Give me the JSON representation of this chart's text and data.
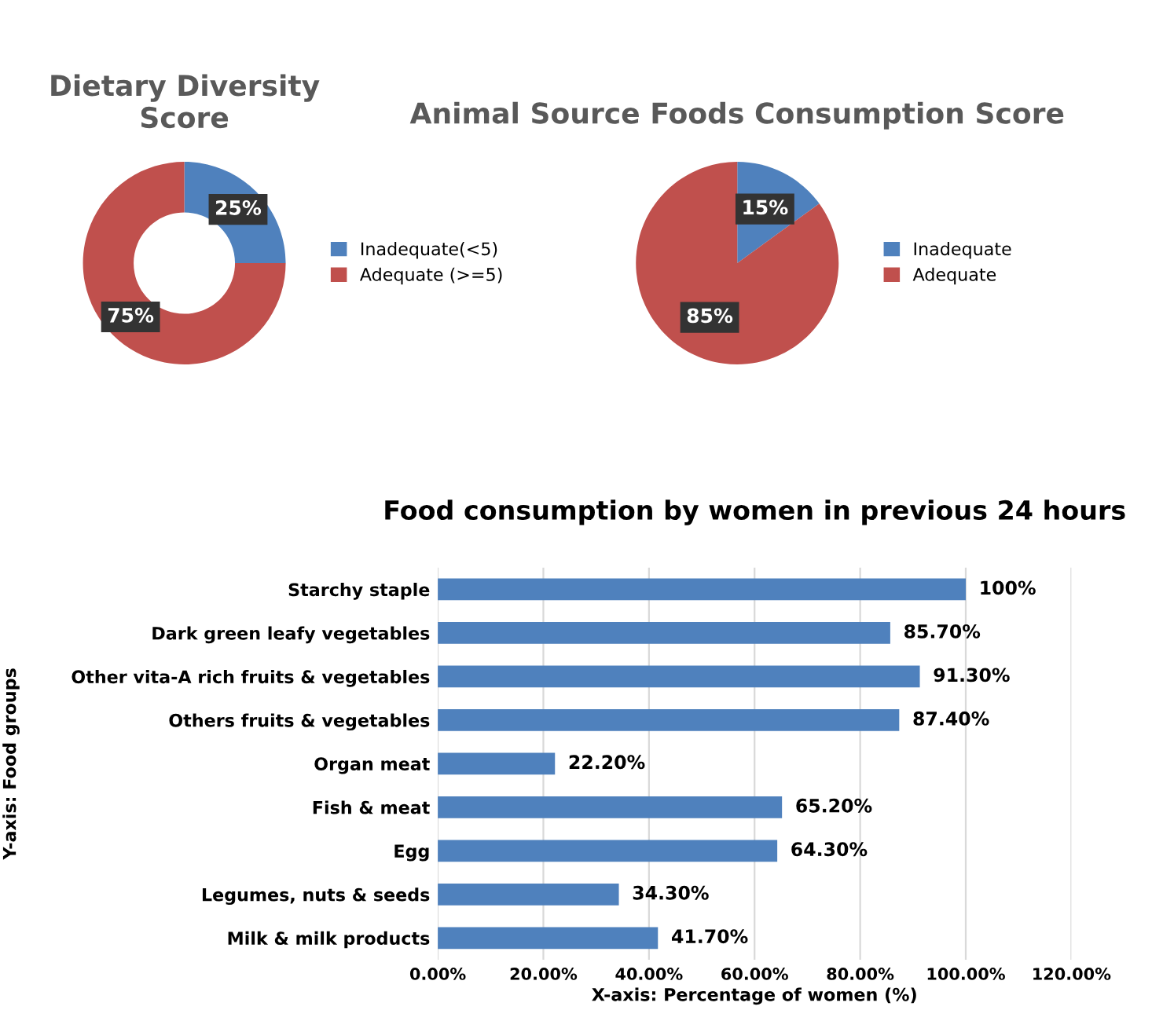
{
  "chart_data": [
    {
      "type": "donut",
      "title": "Dietary Diversity Score",
      "categories": [
        "Inadequate(<5)",
        "Adequate (>=5)"
      ],
      "values": [
        25,
        75
      ],
      "colors": [
        "#4f81bd",
        "#c0504d"
      ],
      "value_labels": [
        "25%",
        "75%"
      ],
      "legend": "right"
    },
    {
      "type": "pie",
      "title": "Animal Source Foods Consumption Score",
      "categories": [
        "Inadequate",
        "Adequate"
      ],
      "values": [
        15,
        85
      ],
      "colors": [
        "#4f81bd",
        "#c0504d"
      ],
      "value_labels": [
        "15%",
        "85%"
      ],
      "legend": "right"
    },
    {
      "type": "bar",
      "orientation": "horizontal",
      "title": "Food consumption by women in previous 24 hours",
      "xlabel": "X-axis: Percentage of women (%)",
      "ylabel": "Y-axis: Food groups",
      "categories": [
        "Starchy staple",
        "Dark green leafy vegetables",
        "Other vita-A rich fruits & vegetables",
        "Others fruits & vegetables",
        "Organ meat",
        "Fish & meat",
        "Egg",
        "Legumes, nuts & seeds",
        "Milk & milk products"
      ],
      "values": [
        100,
        85.7,
        91.3,
        87.4,
        22.2,
        65.2,
        64.3,
        34.3,
        41.7
      ],
      "color": "#4f81bd",
      "value_labels": [
        "100%",
        "85.70%",
        "91.30%",
        "87.40%",
        "22.20%",
        "65.20%",
        "64.30%",
        "34.30%",
        "41.70%"
      ],
      "xlim": [
        0,
        120
      ],
      "xticks": [
        {
          "value": 0,
          "label": "0.00%"
        },
        {
          "value": 20,
          "label": "20.00%"
        },
        {
          "value": 40,
          "label": "40.00%"
        },
        {
          "value": 60,
          "label": "60.00%"
        },
        {
          "value": 80,
          "label": "80.00%"
        },
        {
          "value": 100,
          "label": "100.00%"
        },
        {
          "value": 120,
          "label": "120.00%"
        }
      ],
      "grid": "x"
    }
  ]
}
